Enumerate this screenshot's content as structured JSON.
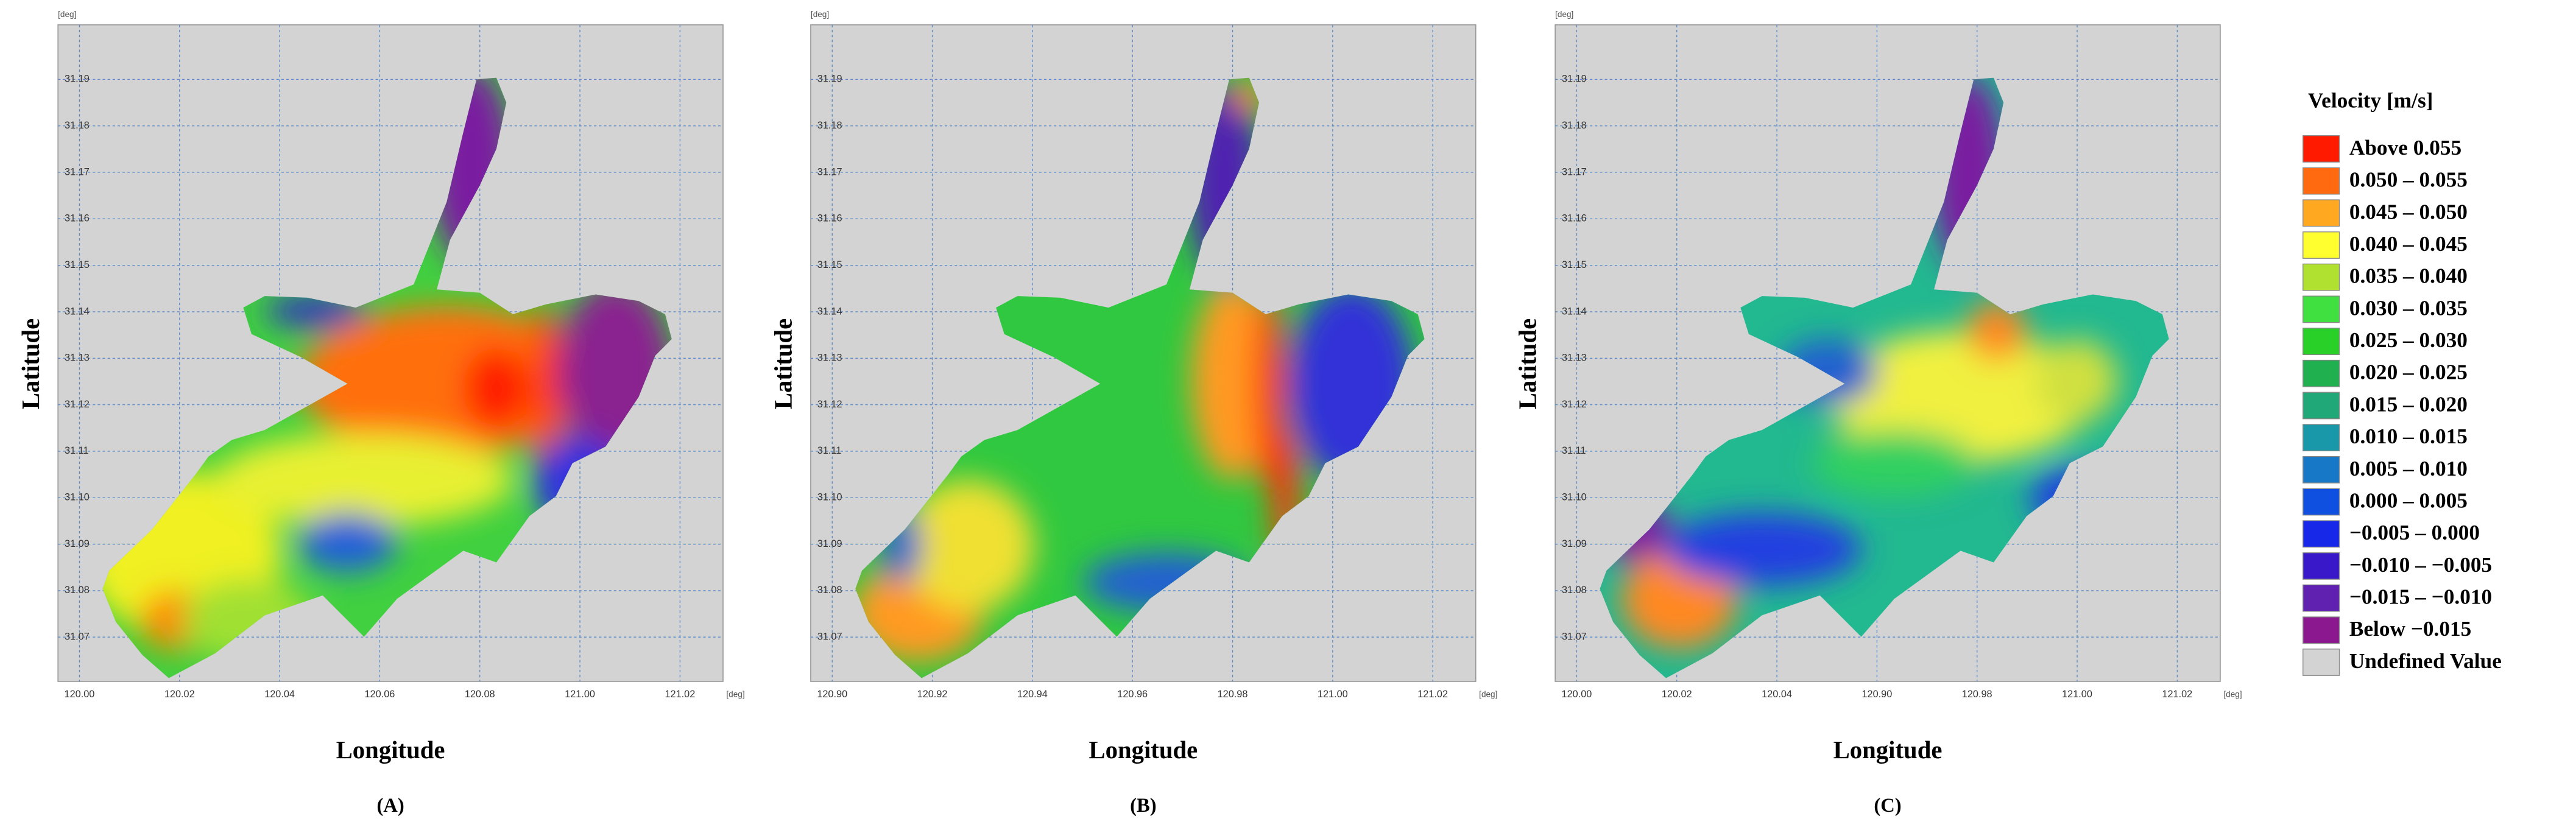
{
  "legend": {
    "title": "Velocity [m/s]",
    "items": [
      {
        "label": "Above  0.055",
        "color": "#ff1a00"
      },
      {
        "label": "0.050 – 0.055",
        "color": "#ff6a10"
      },
      {
        "label": "0.045 – 0.050",
        "color": "#ffa820"
      },
      {
        "label": "0.040 – 0.045",
        "color": "#ffff30"
      },
      {
        "label": "0.035 – 0.040",
        "color": "#b0e030"
      },
      {
        "label": "0.030 – 0.035",
        "color": "#40e040"
      },
      {
        "label": "0.025 – 0.030",
        "color": "#28d028"
      },
      {
        "label": "0.020 – 0.025",
        "color": "#20b050"
      },
      {
        "label": "0.015 – 0.020",
        "color": "#20a878"
      },
      {
        "label": "0.010 – 0.015",
        "color": "#1898a8"
      },
      {
        "label": "0.005 – 0.010",
        "color": "#1878c8"
      },
      {
        "label": "0.000 – 0.005",
        "color": "#1050e0"
      },
      {
        "label": "−0.005 – 0.000",
        "color": "#1828e8"
      },
      {
        "label": "−0.010 – −0.005",
        "color": "#3818c8"
      },
      {
        "label": "−0.015 – −0.010",
        "color": "#6020b0"
      },
      {
        "label": "Below −0.015",
        "color": "#8c1890"
      },
      {
        "label": "Undefined Value",
        "color": "#d3d3d3"
      }
    ]
  },
  "panels": [
    {
      "label": "(A)",
      "x_axis_label": "Longitude",
      "y_axis_label": "Latitude",
      "x_unit": "[deg]",
      "y_unit": "[deg]",
      "x_ticks": [
        "120.00",
        "120.02",
        "120.04",
        "120.06",
        "120.08",
        "121.00",
        "121.02"
      ],
      "y_ticks": [
        "31.19",
        "31.18",
        "31.17",
        "31.16",
        "31.15",
        "31.14",
        "31.13",
        "31.12",
        "31.11",
        "31.10",
        "31.09",
        "31.08",
        "31.07"
      ]
    },
    {
      "label": "(B)",
      "x_axis_label": "Longitude",
      "y_axis_label": "Latitude",
      "x_unit": "[deg]",
      "y_unit": "[deg]",
      "x_ticks": [
        "120.90",
        "120.92",
        "120.94",
        "120.96",
        "120.98",
        "121.00",
        "121.02"
      ],
      "y_ticks": [
        "31.19",
        "31.18",
        "31.17",
        "31.16",
        "31.15",
        "31.14",
        "31.13",
        "31.12",
        "31.11",
        "31.10",
        "31.09",
        "31.08",
        "31.07"
      ]
    },
    {
      "label": "(C)",
      "x_axis_label": "Longitude",
      "y_axis_label": "Latitude",
      "x_unit": "[deg]",
      "y_unit": "[deg]",
      "x_ticks": [
        "120.00",
        "120.02",
        "120.04",
        "120.90",
        "120.98",
        "121.00",
        "121.02"
      ],
      "y_ticks": [
        "31.19",
        "31.18",
        "31.17",
        "31.16",
        "31.15",
        "31.14",
        "31.13",
        "31.12",
        "31.11",
        "31.10",
        "31.09",
        "31.08",
        "31.07"
      ]
    }
  ]
}
